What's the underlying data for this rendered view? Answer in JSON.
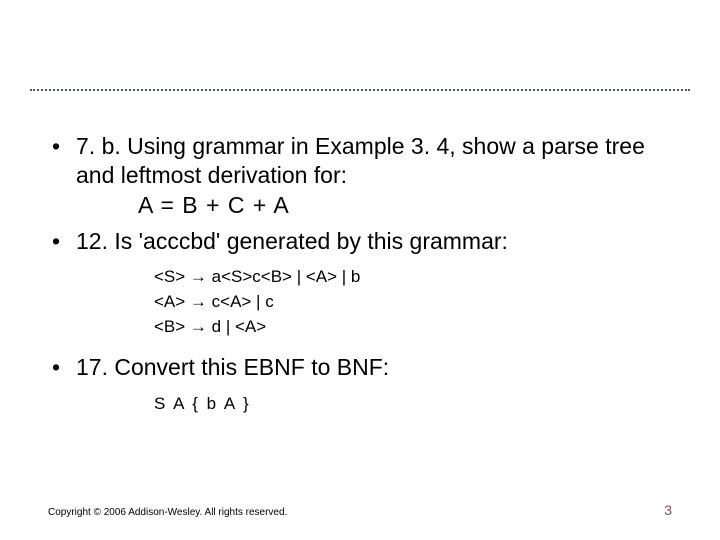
{
  "divider": {
    "color": "#3b5998"
  },
  "bullets": {
    "item1": {
      "text": "7. b. Using grammar in Example 3. 4, show a parse tree and leftmost derivation for:",
      "equation": "A = B + C + A"
    },
    "item2": {
      "text": "12. Is 'acccbd' generated by this grammar:",
      "rules": {
        "r1": "<S> → a<S>c<B> | <A> | b",
        "r2": "<A> → c<A> | c",
        "r3": "<B> → d | <A>"
      }
    },
    "item3": {
      "text": "17. Convert this EBNF to BNF:",
      "rules": {
        "r1": "S  A  { b A }"
      }
    }
  },
  "footer": {
    "copyright": "Copyright © 2006 Addison-Wesley. All rights reserved.",
    "page": "3"
  },
  "style": {
    "body_fontsize": 23,
    "sub_fontsize": 17,
    "copyright_fontsize": 10,
    "pagenum_fontsize": 14,
    "pagenum_color": "#8b4a4a",
    "background": "#ffffff",
    "text_color": "#000000"
  }
}
